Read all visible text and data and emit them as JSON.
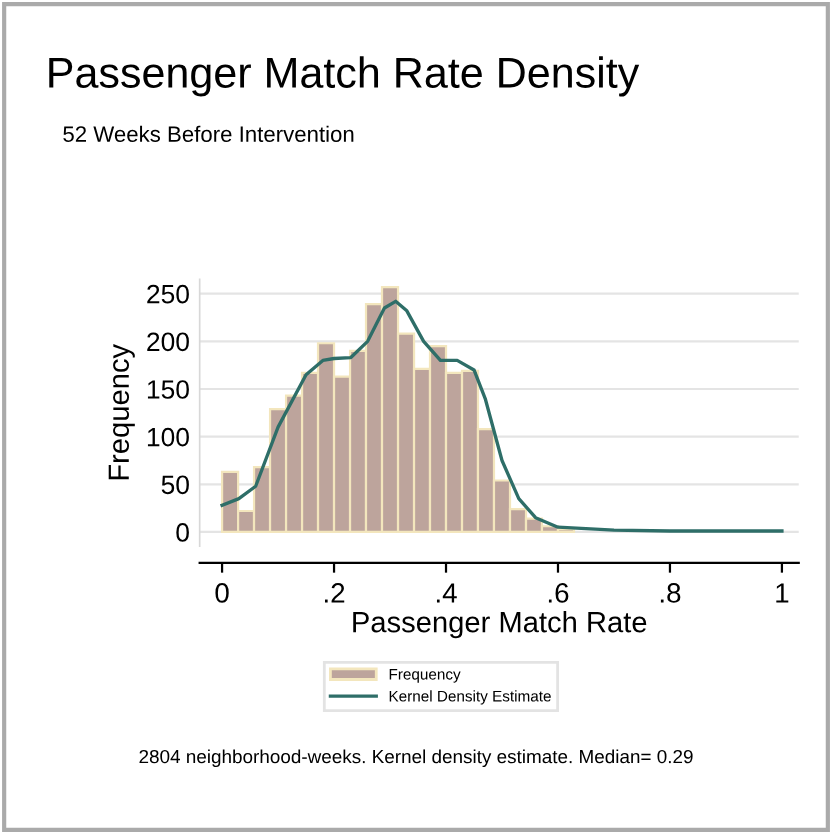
{
  "chart_data": {
    "type": "histogram",
    "title": "Passenger Match Rate Density",
    "subtitle": "52 Weeks Before Intervention",
    "xlabel": "Passenger Match Rate",
    "ylabel": "Frequency",
    "bins": [
      0,
      0.0286,
      0.0571,
      0.0857,
      0.1143,
      0.1429,
      0.1714,
      0.2,
      0.2286,
      0.2571,
      0.2857,
      0.3143,
      0.3429,
      0.3714,
      0.4,
      0.4286,
      0.4571,
      0.4857,
      0.5143,
      0.5429,
      0.5714,
      0.6,
      0.6286
    ],
    "series": [
      {
        "name": "Frequency",
        "color": "#bda49c",
        "values": [
          63,
          22,
          68,
          129,
          143,
          167,
          198,
          163,
          190,
          239,
          257,
          208,
          171,
          195,
          167,
          169,
          108,
          54,
          24,
          14,
          6,
          3
        ]
      },
      {
        "name": "Kernel Density Estimate",
        "type": "line",
        "color": "#2e6e68",
        "x": [
          0,
          0.03,
          0.06,
          0.1,
          0.15,
          0.18,
          0.2,
          0.23,
          0.26,
          0.29,
          0.31,
          0.33,
          0.36,
          0.39,
          0.42,
          0.45,
          0.47,
          0.5,
          0.53,
          0.56,
          0.6,
          0.7,
          0.8,
          1.0
        ],
        "values": [
          28,
          35,
          48,
          110,
          165,
          180,
          182,
          183,
          200,
          235,
          242,
          232,
          200,
          180,
          180,
          170,
          140,
          75,
          35,
          15,
          5,
          2,
          1,
          1
        ]
      }
    ],
    "xlim": [
      -0.04,
      1.03
    ],
    "xticks": [
      {
        "value": 0,
        "label": "0"
      },
      {
        "value": 0.2,
        "label": ".2"
      },
      {
        "value": 0.4,
        "label": ".4"
      },
      {
        "value": 0.6,
        "label": ".6"
      },
      {
        "value": 0.8,
        "label": ".8"
      },
      {
        "value": 1,
        "label": "1"
      }
    ],
    "ylim": [
      -15,
      265
    ],
    "yticks": [
      0,
      50,
      100,
      150,
      200,
      250
    ],
    "grid": "y",
    "legend": "bottom",
    "annotations": [
      "2804 neighborhood-weeks. Kernel density estimate. Median= 0.29"
    ]
  }
}
